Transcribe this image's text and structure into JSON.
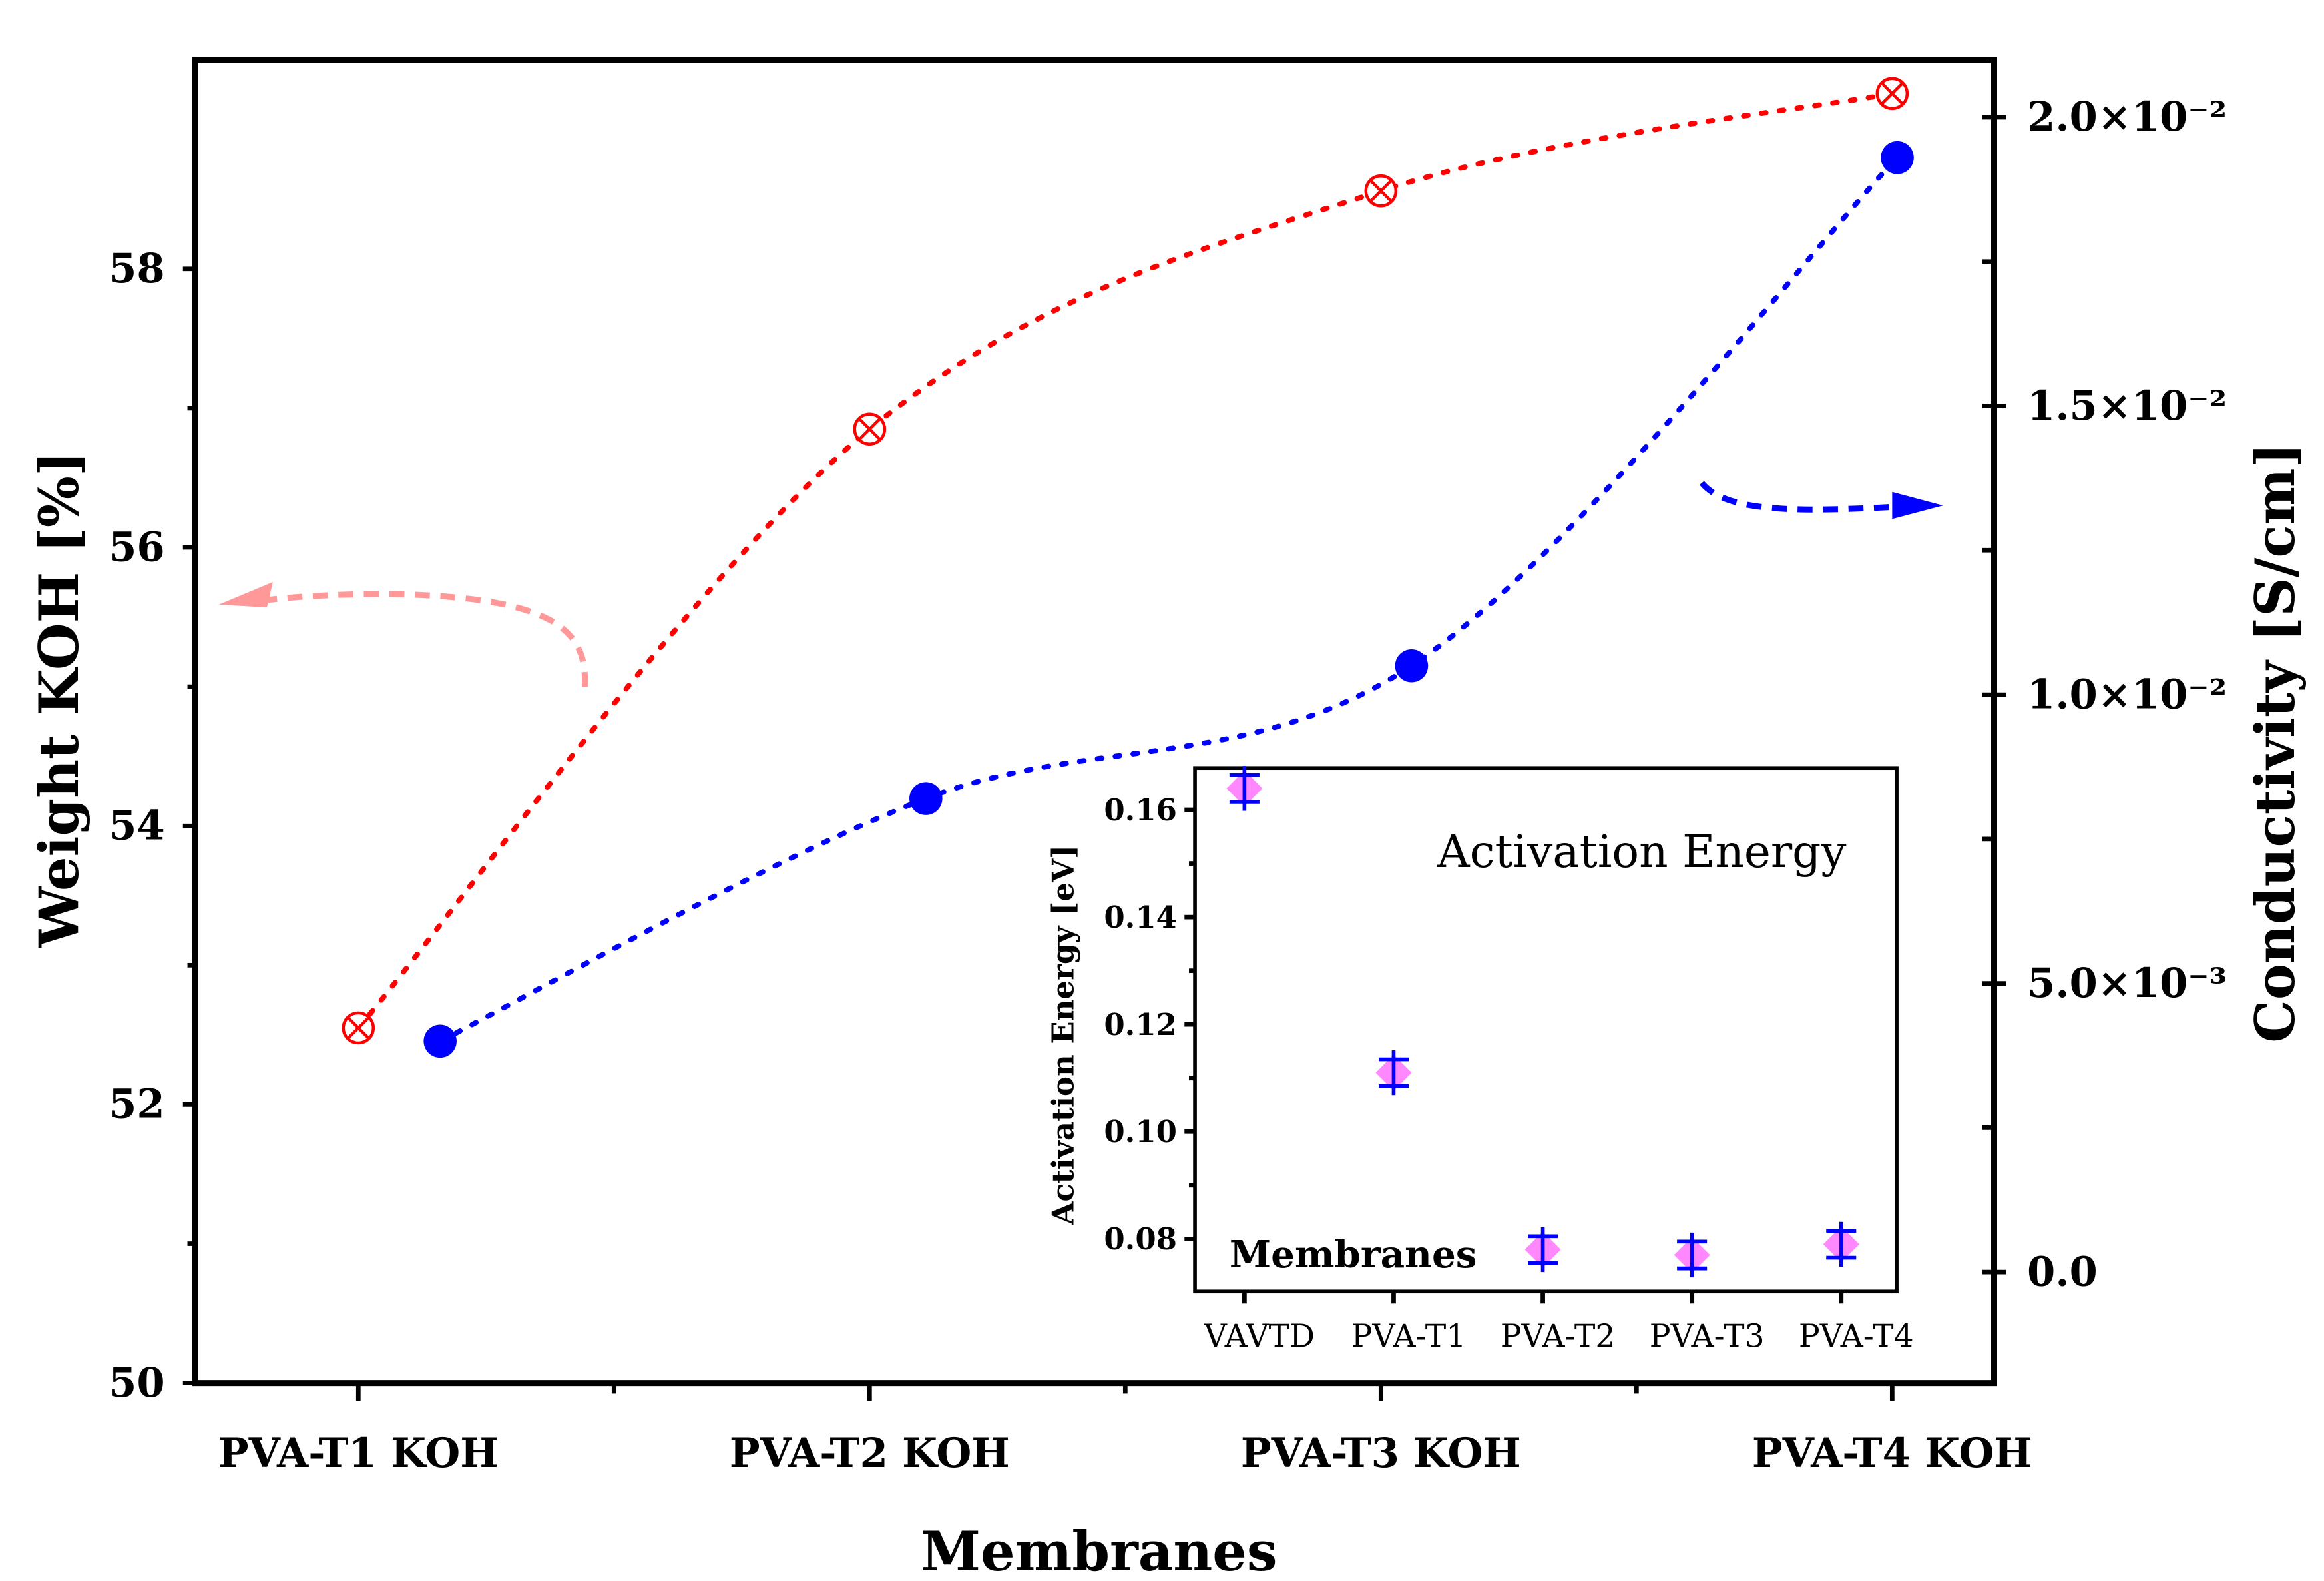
{
  "chart_data": [
    {
      "type": "line",
      "title": "",
      "xlabel": "Membranes",
      "categories": [
        "PVA-T1 KOH",
        "PVA-T2 KOH",
        "PVA-T3 KOH",
        "PVA-T4 KOH"
      ],
      "y_left": {
        "label": "Weight KOH [%]",
        "ticks": [
          "50",
          "52",
          "54",
          "56",
          "58"
        ],
        "tick_values": [
          50,
          52,
          54,
          56,
          58
        ],
        "ylim": [
          50,
          59.5
        ]
      },
      "y_right": {
        "label": "Conductivity [S/cm]",
        "ticks": [
          "0.0",
          "5.0×10⁻³",
          "1.0×10⁻²",
          "1.5×10⁻²",
          "2.0×10⁻²"
        ],
        "tick_values": [
          0,
          0.005,
          0.01,
          0.015,
          0.02
        ],
        "ylim": [
          -0.00192,
          0.02099
        ]
      },
      "series": [
        {
          "name": "Weight KOH",
          "axis": "left",
          "color": "#ff0000",
          "marker": "circle-x",
          "x": [
            0,
            1,
            2,
            3
          ],
          "values": [
            52.55,
            56.85,
            58.56,
            59.26
          ]
        },
        {
          "name": "Conductivity",
          "axis": "right",
          "color": "#0000ff",
          "marker": "filled-circle",
          "x": [
            0.16,
            1.11,
            2.06,
            3.01
          ],
          "values": [
            0.004,
            0.0082,
            0.0105,
            0.0193
          ]
        }
      ],
      "annotations": [
        {
          "type": "arrow",
          "points_to": "left-axis",
          "color": "#ff9999"
        },
        {
          "type": "arrow",
          "points_to": "right-axis",
          "color": "#0000ff"
        }
      ],
      "grid": false
    },
    {
      "type": "scatter",
      "title": "Activation Energy",
      "xlabel": "Membranes",
      "ylabel": "Activation Energy [eV]",
      "categories": [
        "VAVTD",
        "PVA-T1",
        "PVA-T2",
        "PVA-T3",
        "PVA-T4"
      ],
      "values": [
        0.164,
        0.111,
        0.078,
        0.077,
        0.079
      ],
      "errors": [
        0.0025,
        0.0025,
        0.0025,
        0.0025,
        0.0025
      ],
      "ticks": [
        "0.08",
        "0.10",
        "0.12",
        "0.14",
        "0.16"
      ],
      "tick_values": [
        0.08,
        0.1,
        0.12,
        0.14,
        0.16
      ],
      "ylim": [
        0.0702,
        0.1678
      ],
      "marker_color": "#ff88ff",
      "errorbar_color": "#0000ff",
      "grid": false
    }
  ]
}
